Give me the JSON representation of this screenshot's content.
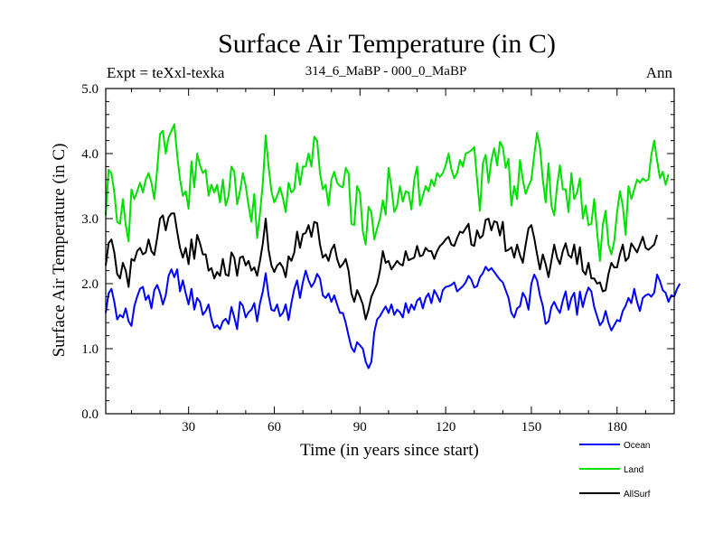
{
  "chart_data": {
    "type": "line",
    "title": "Surface Air Temperature (in C)",
    "subtitle_left": "Expt = teXxl-texka",
    "subtitle_center": "314_6_MaBP - 000_0_MaBP",
    "subtitle_right": "Ann",
    "xlabel": "Time (in years since start)",
    "ylabel": "Surface Air Temperature (in C)",
    "xlim": [
      1,
      200
    ],
    "ylim": [
      0,
      5
    ],
    "x_ticks": [
      30,
      60,
      90,
      120,
      150,
      180
    ],
    "x_tick_labels": [
      "30",
      "60",
      "90",
      "120",
      "150",
      "180"
    ],
    "y_ticks": [
      0,
      1,
      2,
      3,
      4,
      5
    ],
    "y_tick_labels": [
      "0.0",
      "1.0",
      "2.0",
      "3.0",
      "4.0",
      "5.0"
    ],
    "series": [
      {
        "name": "Ocean",
        "color": "#0000ff",
        "values": [
          1.55,
          1.85,
          1.92,
          1.72,
          1.45,
          1.52,
          1.48,
          1.62,
          1.42,
          1.35,
          1.65,
          1.8,
          1.92,
          1.95,
          1.75,
          1.82,
          1.62,
          1.9,
          1.98,
          1.86,
          1.68,
          1.82,
          2.12,
          2.22,
          2.1,
          2.22,
          1.88,
          2.05,
          1.85,
          1.68,
          1.92,
          1.6,
          1.78,
          1.72,
          1.52,
          1.58,
          1.68,
          1.45,
          1.32,
          1.36,
          1.3,
          1.42,
          1.46,
          1.38,
          1.64,
          1.48,
          1.3,
          1.72,
          1.66,
          1.48,
          1.56,
          1.6,
          1.7,
          1.42,
          1.7,
          1.88,
          2.16,
          1.82,
          1.6,
          1.58,
          1.68,
          1.5,
          1.55,
          1.68,
          1.44,
          1.7,
          1.92,
          2.05,
          1.78,
          2.02,
          2.2,
          2.05,
          1.95,
          2.02,
          2.15,
          2.08,
          1.82,
          1.78,
          1.85,
          1.72,
          1.82,
          1.68,
          1.55,
          1.55,
          1.4,
          1.2,
          1.02,
          0.95,
          1.1,
          1.05,
          1.0,
          0.8,
          0.7,
          0.8,
          1.25,
          1.45,
          1.5,
          1.58,
          1.65,
          1.55,
          1.68,
          1.52,
          1.6,
          1.56,
          1.48,
          1.7,
          1.55,
          1.68,
          1.6,
          1.74,
          1.78,
          1.62,
          1.78,
          1.85,
          1.7,
          1.9,
          1.82,
          1.72,
          1.9,
          1.95,
          1.96,
          1.98,
          2.02,
          1.88,
          1.92,
          1.96,
          2.02,
          2.12,
          2.06,
          1.94,
          1.96,
          2.1,
          2.16,
          2.26,
          2.2,
          2.24,
          2.18,
          2.12,
          2.06,
          2.02,
          1.9,
          1.78,
          1.55,
          1.48,
          1.62,
          1.65,
          1.86,
          1.78,
          1.6,
          2.0,
          2.14,
          2.05,
          1.82,
          1.66,
          1.38,
          1.42,
          1.64,
          1.72,
          1.62,
          1.55,
          1.74,
          1.88,
          1.6,
          1.78,
          1.86,
          1.52,
          1.88,
          1.64,
          1.82,
          1.94,
          1.88,
          1.64,
          1.5,
          1.36,
          1.42,
          1.58,
          1.4,
          1.28,
          1.36,
          1.44,
          1.42,
          1.58,
          1.66,
          1.78,
          1.7,
          1.92,
          1.72,
          1.58,
          1.78,
          1.82,
          1.84,
          1.8,
          1.86,
          2.14,
          2.04,
          1.9,
          1.86,
          1.72,
          1.82,
          1.8,
          1.92,
          2.0
        ]
      },
      {
        "name": "Land",
        "color": "#00e000",
        "values": [
          3.05,
          3.75,
          3.7,
          3.4,
          2.95,
          2.92,
          3.3,
          2.9,
          2.65,
          3.45,
          3.3,
          3.42,
          3.55,
          3.4,
          3.6,
          3.7,
          3.55,
          3.3,
          3.75,
          4.3,
          4.35,
          4.0,
          4.25,
          4.35,
          4.45,
          3.98,
          3.6,
          3.35,
          3.42,
          3.15,
          3.88,
          3.48,
          4.0,
          3.82,
          3.7,
          3.75,
          3.35,
          3.52,
          3.4,
          3.52,
          3.25,
          3.6,
          3.2,
          3.35,
          3.8,
          3.72,
          3.22,
          3.42,
          3.7,
          3.5,
          3.2,
          2.95,
          3.38,
          2.7,
          3.08,
          3.55,
          4.28,
          3.8,
          3.42,
          3.25,
          3.35,
          3.48,
          3.32,
          3.1,
          3.55,
          3.4,
          3.45,
          3.85,
          3.52,
          3.8,
          3.8,
          4.0,
          3.8,
          4.26,
          4.2,
          3.7,
          3.45,
          3.52,
          3.2,
          3.6,
          3.72,
          3.55,
          3.5,
          3.48,
          3.78,
          3.7,
          2.92,
          2.9,
          3.5,
          3.4,
          2.8,
          2.6,
          3.18,
          3.1,
          2.68,
          2.85,
          3.0,
          3.28,
          3.06,
          3.78,
          3.48,
          3.1,
          3.2,
          3.5,
          3.26,
          3.42,
          3.4,
          3.14,
          3.6,
          3.8,
          3.2,
          3.35,
          3.5,
          3.42,
          3.6,
          3.5,
          3.7,
          3.64,
          3.7,
          3.82,
          4.0,
          3.76,
          3.62,
          3.7,
          3.9,
          3.8,
          4.0,
          4.02,
          4.05,
          4.1,
          3.6,
          3.12,
          3.85,
          3.98,
          3.55,
          3.9,
          4.08,
          3.82,
          4.18,
          4.1,
          3.78,
          3.92,
          3.2,
          3.5,
          3.3,
          3.9,
          3.6,
          3.38,
          3.5,
          3.6,
          3.98,
          4.32,
          4.1,
          3.6,
          3.25,
          3.85,
          3.2,
          3.05,
          3.5,
          3.82,
          3.45,
          3.45,
          3.1,
          3.7,
          3.3,
          3.4,
          3.62,
          3.0,
          3.2,
          2.9,
          2.92,
          3.3,
          2.8,
          2.35,
          2.9,
          3.12,
          2.6,
          2.45,
          2.65,
          3.1,
          3.42,
          3.2,
          2.75,
          3.5,
          3.3,
          3.45,
          3.6,
          3.55,
          3.62,
          3.58,
          3.6,
          3.98,
          4.2,
          3.9,
          3.62,
          3.72,
          3.52,
          3.68
        ]
      },
      {
        "name": "AllSurf",
        "color": "#000000",
        "values": [
          2.28,
          2.62,
          2.68,
          2.48,
          2.15,
          2.08,
          2.32,
          2.2,
          1.95,
          2.38,
          2.35,
          2.5,
          2.55,
          2.45,
          2.48,
          2.68,
          2.5,
          2.44,
          2.7,
          3.0,
          3.05,
          2.82,
          3.02,
          3.08,
          3.08,
          2.8,
          2.55,
          2.4,
          2.55,
          2.3,
          2.68,
          2.38,
          2.75,
          2.62,
          2.45,
          2.45,
          2.2,
          2.24,
          2.08,
          2.18,
          2.12,
          2.38,
          2.14,
          2.12,
          2.48,
          2.4,
          2.12,
          2.4,
          2.42,
          2.28,
          2.35,
          2.2,
          2.25,
          2.12,
          2.35,
          2.62,
          3.0,
          2.52,
          2.28,
          2.18,
          2.28,
          2.32,
          2.25,
          2.1,
          2.42,
          2.35,
          2.48,
          2.8,
          2.55,
          2.76,
          2.78,
          2.9,
          2.72,
          2.95,
          2.93,
          2.6,
          2.4,
          2.45,
          2.35,
          2.52,
          2.6,
          2.38,
          2.25,
          2.3,
          2.38,
          2.2,
          1.85,
          1.72,
          1.9,
          1.8,
          1.68,
          1.45,
          1.6,
          1.8,
          1.9,
          2.0,
          2.2,
          2.5,
          2.32,
          2.35,
          2.22,
          2.28,
          2.35,
          2.3,
          2.28,
          2.5,
          2.36,
          2.38,
          2.4,
          2.58,
          2.42,
          2.44,
          2.55,
          2.5,
          2.5,
          2.38,
          2.5,
          2.58,
          2.62,
          2.68,
          2.72,
          2.6,
          2.58,
          2.7,
          2.8,
          2.78,
          2.85,
          2.92,
          2.6,
          2.58,
          2.82,
          2.7,
          2.74,
          2.98,
          3.0,
          2.82,
          2.96,
          2.94,
          2.74,
          2.95,
          2.5,
          2.52,
          2.56,
          2.4,
          2.6,
          2.44,
          2.32,
          2.6,
          2.85,
          2.9,
          2.7,
          2.45,
          2.22,
          2.45,
          2.3,
          2.1,
          2.35,
          2.6,
          2.4,
          2.3,
          2.5,
          2.62,
          2.44,
          2.4,
          2.6,
          2.3,
          2.56,
          2.2,
          2.14,
          2.32,
          2.08,
          2.08,
          2.0,
          2.02,
          1.88,
          1.9,
          2.15,
          2.32,
          2.25,
          2.25,
          2.45,
          2.6,
          2.35,
          2.4,
          2.62,
          2.55,
          2.48,
          2.6,
          2.72,
          2.55,
          2.52,
          2.56,
          2.6,
          2.75
        ]
      }
    ],
    "legend": {
      "position": "bottom-right",
      "entries": [
        "Ocean",
        "Land",
        "AllSurf"
      ]
    }
  }
}
